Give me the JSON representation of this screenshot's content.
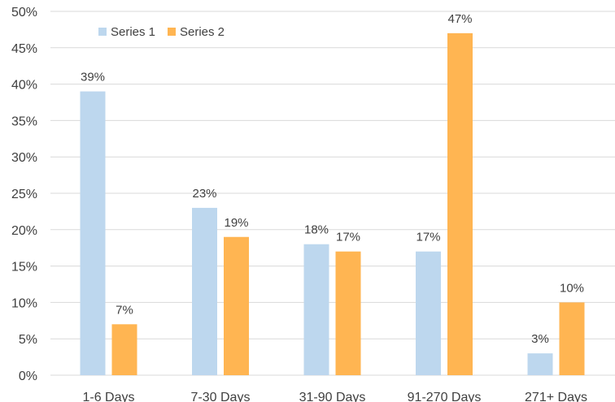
{
  "chart_data": {
    "type": "bar",
    "title": "",
    "xlabel": "",
    "ylabel": "",
    "categories": [
      "1-6 Days",
      "7-30 Days",
      "31-90 Days",
      "91-270 Days",
      "271+ Days"
    ],
    "series": [
      {
        "name": "Series 1",
        "values": [
          39,
          23,
          18,
          17,
          3
        ],
        "color": "#bdd7ee"
      },
      {
        "name": "Series 2",
        "values": [
          7,
          19,
          17,
          47,
          10
        ],
        "color": "#ffb552"
      }
    ],
    "ylim": [
      0,
      50
    ],
    "yticks": [
      0,
      5,
      10,
      15,
      20,
      25,
      30,
      35,
      40,
      45,
      50
    ],
    "value_suffix": "%",
    "grid": true,
    "legend_position": "top-left"
  }
}
